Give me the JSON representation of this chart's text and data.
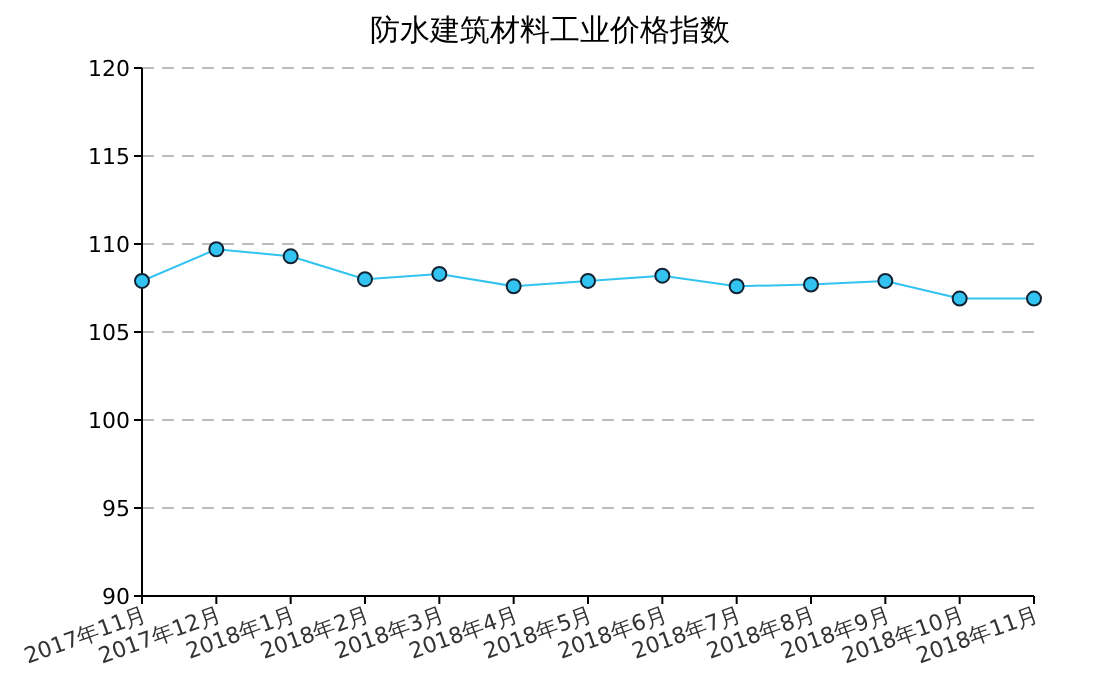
{
  "chart_data": {
    "type": "line",
    "title": "防水建筑材料工业价格指数",
    "categories": [
      "2017年11月",
      "2017年12月",
      "2018年1月",
      "2018年2月",
      "2018年3月",
      "2018年4月",
      "2018年5月",
      "2018年6月",
      "2018年7月",
      "2018年8月",
      "2018年9月",
      "2018年10月",
      "2018年11月"
    ],
    "series": [
      {
        "color": "#33c3f0",
        "values": [
          107.9,
          109.7,
          109.3,
          108.0,
          108.3,
          107.6,
          107.9,
          108.2,
          107.6,
          107.7,
          107.9,
          106.9,
          106.9
        ]
      }
    ],
    "ylim": [
      90,
      120
    ],
    "yticks": [
      90,
      95,
      100,
      105,
      110,
      115,
      120
    ],
    "grid": "y",
    "marker": "circle",
    "line_style": "solid"
  }
}
